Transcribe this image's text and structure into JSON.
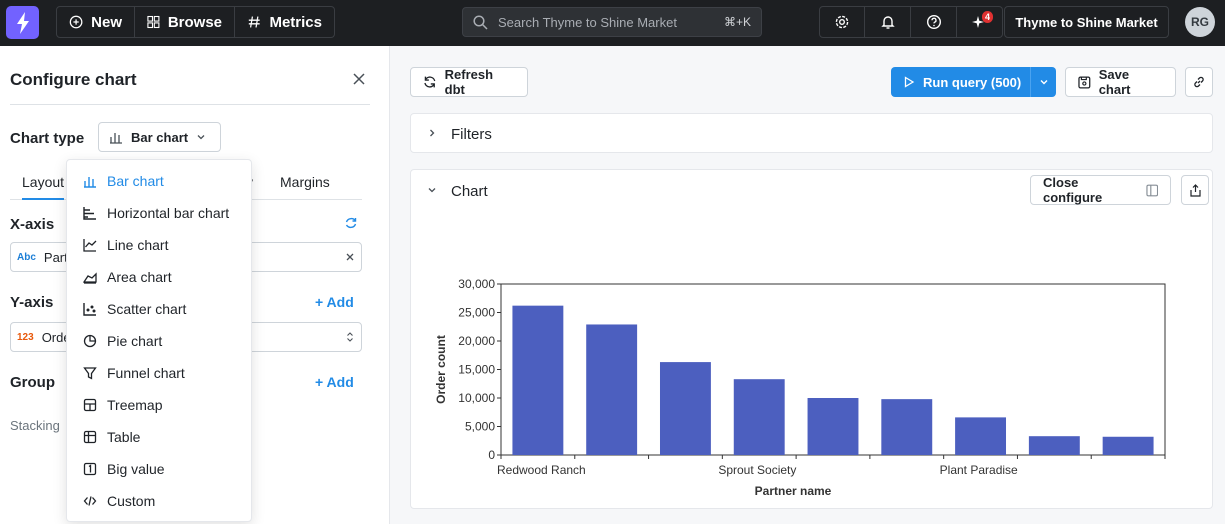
{
  "nav": {
    "new_label": "New",
    "browse_label": "Browse",
    "metrics_label": "Metrics",
    "search_placeholder": "Search Thyme to Shine Market",
    "search_shortcut": "⌘+K",
    "notifications_badge": "4",
    "org_name": "Thyme to Shine Market",
    "avatar_initials": "RG"
  },
  "config": {
    "title": "Configure chart",
    "chart_type_label": "Chart type",
    "chart_type_value": "Bar chart",
    "tabs": [
      "Layout",
      "y",
      "Margins"
    ],
    "xaxis_label": "X-axis",
    "xaxis_field": "Partn",
    "yaxis_label": "Y-axis",
    "yaxis_add": "+ Add",
    "yaxis_field": "Orde",
    "group_label": "Group",
    "group_add": "+ Add",
    "stacking_label": "Stacking",
    "field_type_text": "Abc",
    "field_type_num": "123"
  },
  "chart_types": [
    {
      "label": "Bar chart",
      "icon": "bar-chart-icon"
    },
    {
      "label": "Horizontal bar chart",
      "icon": "horizontal-bar-chart-icon"
    },
    {
      "label": "Line chart",
      "icon": "line-chart-icon"
    },
    {
      "label": "Area chart",
      "icon": "area-chart-icon"
    },
    {
      "label": "Scatter chart",
      "icon": "scatter-chart-icon"
    },
    {
      "label": "Pie chart",
      "icon": "pie-chart-icon"
    },
    {
      "label": "Funnel chart",
      "icon": "funnel-chart-icon"
    },
    {
      "label": "Treemap",
      "icon": "treemap-icon"
    },
    {
      "label": "Table",
      "icon": "table-icon"
    },
    {
      "label": "Big value",
      "icon": "big-value-icon"
    },
    {
      "label": "Custom",
      "icon": "code-icon"
    }
  ],
  "toolbar": {
    "refresh_label": "Refresh dbt",
    "run_label": "Run query (500)",
    "save_label": "Save chart"
  },
  "filters_title": "Filters",
  "chart_card": {
    "title": "Chart",
    "close_configure_label": "Close configure"
  },
  "colors": {
    "accent": "#228be6",
    "bar": "#4c5fbf"
  },
  "chart_data": {
    "type": "bar",
    "categories": [
      "Redwood Ranch",
      "",
      "",
      "Sprout Society",
      "",
      "",
      "Plant Paradise",
      "",
      ""
    ],
    "values": [
      26200,
      22900,
      16300,
      13300,
      10000,
      9800,
      6600,
      3300,
      3200
    ],
    "xlabel": "Partner name",
    "ylabel": "Order count",
    "ylim": [
      0,
      30000
    ],
    "yticks": [
      "0",
      "5,000",
      "10,000",
      "15,000",
      "20,000",
      "25,000",
      "30,000"
    ],
    "xtick_labels": [
      "Redwood Ranch",
      "Sprout Society",
      "Plant Paradise"
    ],
    "grid": false
  }
}
